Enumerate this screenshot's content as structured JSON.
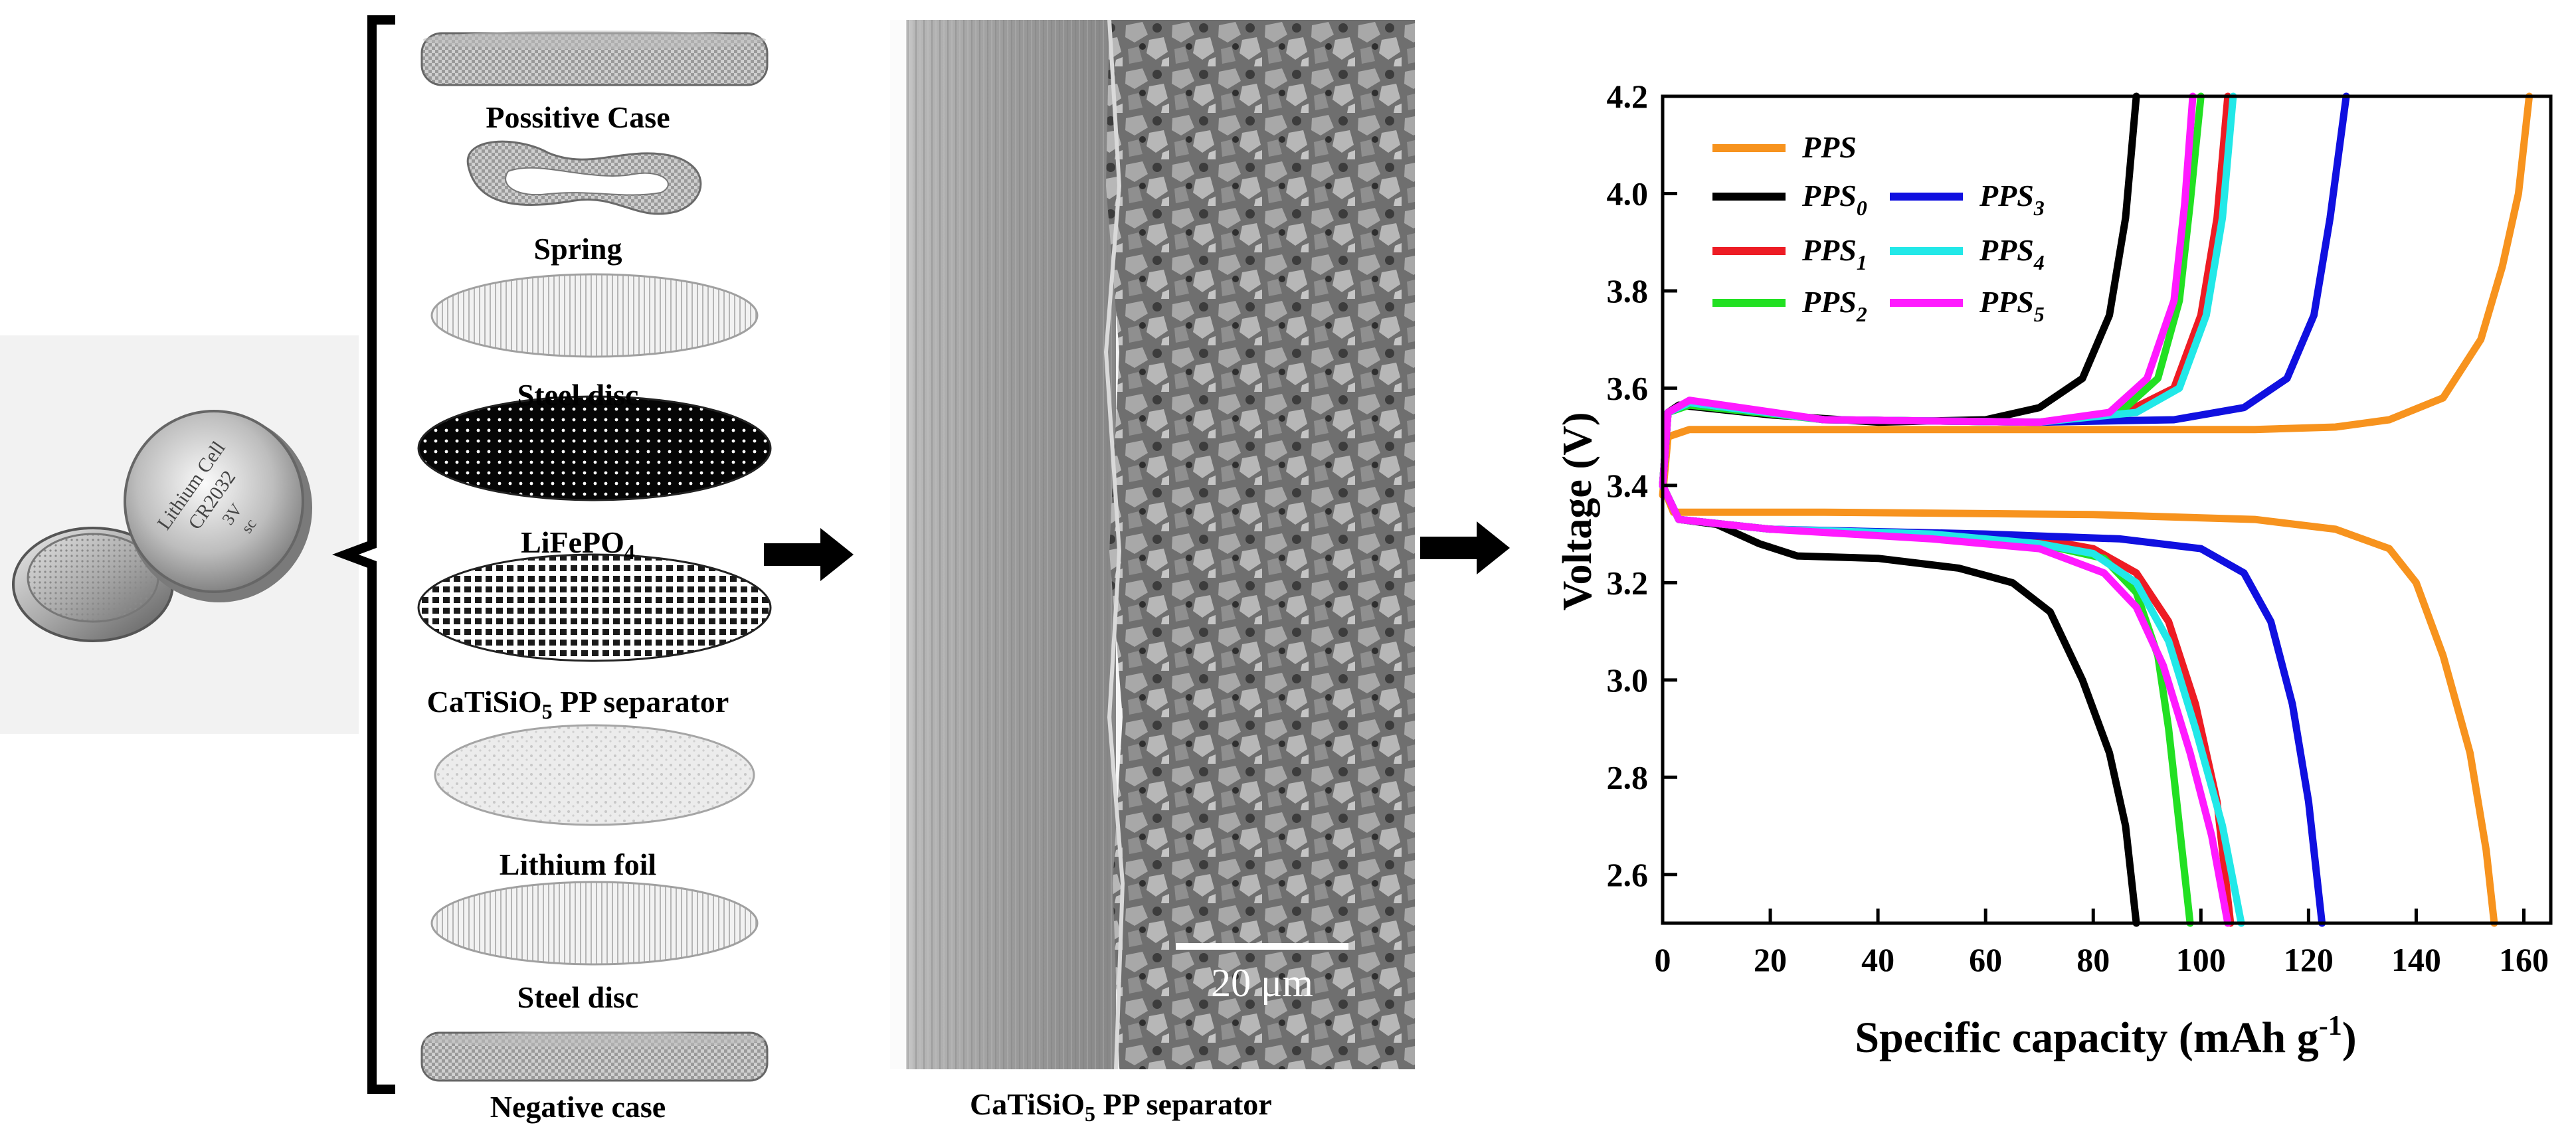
{
  "coin_cell": {
    "text_line1": "Lithium Cell",
    "text_line2": "CR2032",
    "text_line3": "3V",
    "text_line4": "sc"
  },
  "components": [
    {
      "label": "Possitive Case"
    },
    {
      "label": "Spring"
    },
    {
      "label": "Steel disc"
    },
    {
      "label": "LiFePO",
      "subscript": "4"
    },
    {
      "label_before": "CaTiSiO",
      "subscript": "5",
      "label_after": " PP separator"
    },
    {
      "label": "Lithium foil"
    },
    {
      "label": "Steel disc"
    },
    {
      "label": "Negative case"
    }
  ],
  "sem": {
    "scale_bar": "20 μm",
    "caption_before": "CaTiSiO",
    "caption_sub": "5",
    "caption_after": " PP separator"
  },
  "colors": {
    "PPS": "#f7931e",
    "PPS0": "#000000",
    "PPS1": "#ed1c24",
    "PPS2": "#22e022",
    "PPS3": "#1010e0",
    "PPS4": "#22e8e8",
    "PPS5": "#ff1aff"
  },
  "chart_data": {
    "type": "line",
    "xlabel": "Specific capacity (mAh g",
    "xlabel_sup": "-1",
    "xlabel_end": ")",
    "ylabel": "Voltage (V)",
    "xlim": [
      0,
      165
    ],
    "ylim": [
      2.5,
      4.2
    ],
    "xticks": [
      0,
      20,
      40,
      60,
      80,
      100,
      120,
      140,
      160
    ],
    "yticks": [
      2.6,
      2.8,
      3.0,
      3.2,
      3.4,
      3.6,
      3.8,
      4.0,
      4.2
    ],
    "legend_position": "top-left",
    "series": [
      {
        "name": "PPS",
        "sub": "",
        "color_key": "PPS",
        "charge": [
          [
            0,
            3.38
          ],
          [
            1,
            3.5
          ],
          [
            5,
            3.515
          ],
          [
            40,
            3.515
          ],
          [
            80,
            3.515
          ],
          [
            110,
            3.515
          ],
          [
            125,
            3.52
          ],
          [
            135,
            3.535
          ],
          [
            145,
            3.58
          ],
          [
            152,
            3.7
          ],
          [
            156,
            3.85
          ],
          [
            159,
            4.0
          ],
          [
            161,
            4.2
          ]
        ],
        "discharge": [
          [
            0,
            3.4
          ],
          [
            2,
            3.345
          ],
          [
            30,
            3.345
          ],
          [
            80,
            3.34
          ],
          [
            110,
            3.33
          ],
          [
            125,
            3.31
          ],
          [
            135,
            3.27
          ],
          [
            140,
            3.2
          ],
          [
            145,
            3.05
          ],
          [
            150,
            2.85
          ],
          [
            153,
            2.65
          ],
          [
            154.5,
            2.5
          ]
        ]
      },
      {
        "name": "PPS",
        "sub": "0",
        "color_key": "PPS0",
        "charge": [
          [
            0,
            3.4
          ],
          [
            1,
            3.55
          ],
          [
            3,
            3.565
          ],
          [
            20,
            3.545
          ],
          [
            40,
            3.53
          ],
          [
            60,
            3.535
          ],
          [
            70,
            3.56
          ],
          [
            78,
            3.62
          ],
          [
            83,
            3.75
          ],
          [
            86,
            3.95
          ],
          [
            88,
            4.2
          ]
        ],
        "discharge": [
          [
            0,
            3.4
          ],
          [
            3,
            3.33
          ],
          [
            10,
            3.32
          ],
          [
            18,
            3.28
          ],
          [
            25,
            3.255
          ],
          [
            40,
            3.25
          ],
          [
            55,
            3.23
          ],
          [
            65,
            3.2
          ],
          [
            72,
            3.14
          ],
          [
            78,
            3.0
          ],
          [
            83,
            2.85
          ],
          [
            86,
            2.7
          ],
          [
            88,
            2.5
          ]
        ]
      },
      {
        "name": "PPS",
        "sub": "1",
        "color_key": "PPS1",
        "charge": [
          [
            0,
            3.4
          ],
          [
            1,
            3.55
          ],
          [
            5,
            3.57
          ],
          [
            30,
            3.535
          ],
          [
            70,
            3.53
          ],
          [
            85,
            3.545
          ],
          [
            95,
            3.6
          ],
          [
            100,
            3.75
          ],
          [
            103,
            3.95
          ],
          [
            105,
            4.2
          ]
        ],
        "discharge": [
          [
            0,
            3.4
          ],
          [
            3,
            3.33
          ],
          [
            20,
            3.31
          ],
          [
            50,
            3.3
          ],
          [
            70,
            3.29
          ],
          [
            80,
            3.27
          ],
          [
            88,
            3.22
          ],
          [
            94,
            3.12
          ],
          [
            99,
            2.95
          ],
          [
            103,
            2.75
          ],
          [
            105.5,
            2.5
          ]
        ]
      },
      {
        "name": "PPS",
        "sub": "2",
        "color_key": "PPS2",
        "charge": [
          [
            0,
            3.4
          ],
          [
            1,
            3.55
          ],
          [
            5,
            3.565
          ],
          [
            30,
            3.535
          ],
          [
            70,
            3.53
          ],
          [
            85,
            3.55
          ],
          [
            92,
            3.62
          ],
          [
            96,
            3.78
          ],
          [
            98,
            3.98
          ],
          [
            100,
            4.2
          ]
        ],
        "discharge": [
          [
            0,
            3.4
          ],
          [
            3,
            3.33
          ],
          [
            20,
            3.31
          ],
          [
            50,
            3.3
          ],
          [
            70,
            3.28
          ],
          [
            82,
            3.25
          ],
          [
            88,
            3.18
          ],
          [
            92,
            3.05
          ],
          [
            94,
            2.9
          ],
          [
            96,
            2.7
          ],
          [
            98,
            2.5
          ]
        ]
      },
      {
        "name": "PPS",
        "sub": "3",
        "color_key": "PPS3",
        "charge": [
          [
            0,
            3.4
          ],
          [
            1,
            3.55
          ],
          [
            5,
            3.57
          ],
          [
            30,
            3.535
          ],
          [
            70,
            3.53
          ],
          [
            95,
            3.535
          ],
          [
            108,
            3.56
          ],
          [
            116,
            3.62
          ],
          [
            121,
            3.75
          ],
          [
            124,
            3.95
          ],
          [
            127,
            4.2
          ]
        ],
        "discharge": [
          [
            0,
            3.4
          ],
          [
            3,
            3.33
          ],
          [
            20,
            3.31
          ],
          [
            60,
            3.3
          ],
          [
            85,
            3.29
          ],
          [
            100,
            3.27
          ],
          [
            108,
            3.22
          ],
          [
            113,
            3.12
          ],
          [
            117,
            2.95
          ],
          [
            120,
            2.75
          ],
          [
            122.5,
            2.5
          ]
        ]
      },
      {
        "name": "PPS",
        "sub": "4",
        "color_key": "PPS4",
        "charge": [
          [
            0,
            3.4
          ],
          [
            1,
            3.55
          ],
          [
            5,
            3.57
          ],
          [
            30,
            3.535
          ],
          [
            70,
            3.53
          ],
          [
            88,
            3.55
          ],
          [
            96,
            3.6
          ],
          [
            101,
            3.75
          ],
          [
            104,
            3.95
          ],
          [
            106,
            4.2
          ]
        ],
        "discharge": [
          [
            0,
            3.4
          ],
          [
            3,
            3.33
          ],
          [
            20,
            3.31
          ],
          [
            50,
            3.3
          ],
          [
            70,
            3.28
          ],
          [
            80,
            3.26
          ],
          [
            88,
            3.2
          ],
          [
            94,
            3.08
          ],
          [
            99,
            2.9
          ],
          [
            104,
            2.7
          ],
          [
            107.5,
            2.5
          ]
        ]
      },
      {
        "name": "PPS",
        "sub": "5",
        "color_key": "PPS5",
        "charge": [
          [
            0,
            3.4
          ],
          [
            1,
            3.55
          ],
          [
            5,
            3.575
          ],
          [
            30,
            3.535
          ],
          [
            70,
            3.53
          ],
          [
            83,
            3.55
          ],
          [
            90,
            3.62
          ],
          [
            95,
            3.78
          ],
          [
            97,
            3.98
          ],
          [
            98.5,
            4.2
          ]
        ],
        "discharge": [
          [
            0,
            3.4
          ],
          [
            3,
            3.33
          ],
          [
            20,
            3.31
          ],
          [
            50,
            3.29
          ],
          [
            70,
            3.27
          ],
          [
            82,
            3.22
          ],
          [
            88,
            3.15
          ],
          [
            93,
            3.03
          ],
          [
            98,
            2.85
          ],
          [
            102,
            2.68
          ],
          [
            105,
            2.5
          ]
        ]
      }
    ]
  }
}
